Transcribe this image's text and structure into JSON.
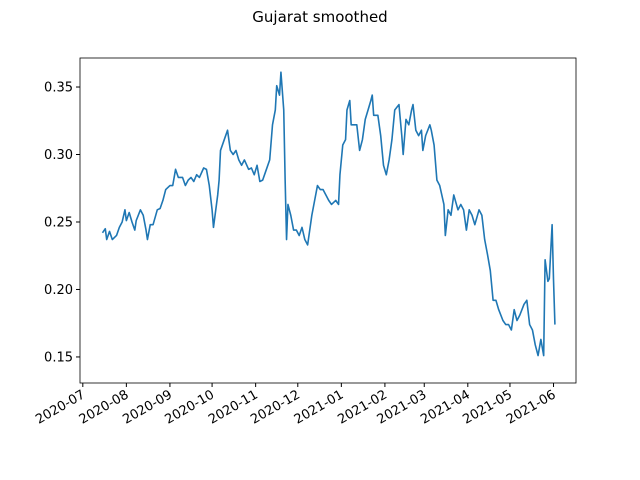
{
  "chart_data": {
    "type": "line",
    "title": "Gujarat smoothed",
    "xlim": [
      18442,
      18795
    ],
    "ylim": [
      0.1307,
      0.3715
    ],
    "xticks": [
      {
        "value": 18444,
        "label": "2020-07"
      },
      {
        "value": 18475,
        "label": "2020-08"
      },
      {
        "value": 18506,
        "label": "2020-09"
      },
      {
        "value": 18536,
        "label": "2020-10"
      },
      {
        "value": 18567,
        "label": "2020-11"
      },
      {
        "value": 18597,
        "label": "2020-12"
      },
      {
        "value": 18628,
        "label": "2021-01"
      },
      {
        "value": 18659,
        "label": "2021-02"
      },
      {
        "value": 18687,
        "label": "2021-03"
      },
      {
        "value": 18718,
        "label": "2021-04"
      },
      {
        "value": 18748,
        "label": "2021-05"
      },
      {
        "value": 18779,
        "label": "2021-06"
      }
    ],
    "yticks": [
      0.15,
      {
        "value": 0.2,
        "label": "0.20"
      },
      0.25,
      {
        "value": 0.3,
        "label": "0.30"
      },
      0.35
    ],
    "grid": false,
    "x": [
      18458,
      18460,
      18461,
      18463,
      18465,
      18468,
      18470,
      18472,
      18474,
      18475,
      18477,
      18479,
      18481,
      18482,
      18485,
      18487,
      18489,
      18490,
      18492,
      18494,
      18497,
      18499,
      18501,
      18503,
      18506,
      18508,
      18510,
      18512,
      18515,
      18517,
      18519,
      18521,
      18523,
      18525,
      18527,
      18530,
      18532,
      18534,
      18536,
      18537,
      18540,
      18541,
      18542,
      18545,
      18547,
      18549,
      18551,
      18553,
      18555,
      18557,
      18559,
      18562,
      18564,
      18566,
      18568,
      18570,
      18572,
      18574,
      18577,
      18579,
      18581,
      18582,
      18584,
      18585,
      18587,
      18588,
      18589,
      18590,
      18592,
      18594,
      18596,
      18598,
      18600,
      18602,
      18604,
      18607,
      18609,
      18611,
      18613,
      18615,
      18617,
      18619,
      18621,
      18624,
      18626,
      18627,
      18629,
      18631,
      18632,
      18634,
      18635,
      18636,
      18639,
      18641,
      18643,
      18645,
      18647,
      18649,
      18650,
      18651,
      18654,
      18656,
      18658,
      18660,
      18662,
      18664,
      18666,
      18669,
      18671,
      18672,
      18674,
      18676,
      18678,
      18679,
      18681,
      18683,
      18685,
      18686,
      18688,
      18691,
      18692,
      18694,
      18696,
      18698,
      18701,
      18702,
      18704,
      18706,
      18708,
      18711,
      18713,
      18715,
      18717,
      18719,
      18721,
      18723,
      18726,
      18728,
      18730,
      18732,
      18734,
      18736,
      18738,
      18740,
      18743,
      18745,
      18747,
      18749,
      18751,
      18753,
      18755,
      18758,
      18760,
      18762,
      18764,
      18766,
      18768,
      18770,
      18772,
      18773,
      18775,
      18776,
      18778,
      18779,
      18780
    ],
    "series": [
      {
        "name": "Gujarat",
        "color": "#1f77b4",
        "values": [
          0.242,
          0.245,
          0.237,
          0.243,
          0.237,
          0.24,
          0.246,
          0.25,
          0.259,
          0.251,
          0.257,
          0.25,
          0.244,
          0.251,
          0.259,
          0.255,
          0.244,
          0.237,
          0.248,
          0.248,
          0.259,
          0.26,
          0.266,
          0.274,
          0.277,
          0.277,
          0.289,
          0.283,
          0.283,
          0.277,
          0.281,
          0.283,
          0.28,
          0.285,
          0.283,
          0.29,
          0.289,
          0.277,
          0.259,
          0.246,
          0.27,
          0.281,
          0.303,
          0.312,
          0.318,
          0.303,
          0.3,
          0.303,
          0.296,
          0.292,
          0.296,
          0.289,
          0.29,
          0.285,
          0.292,
          0.28,
          0.281,
          0.287,
          0.296,
          0.322,
          0.333,
          0.351,
          0.344,
          0.361,
          0.333,
          0.281,
          0.237,
          0.263,
          0.255,
          0.244,
          0.244,
          0.24,
          0.246,
          0.237,
          0.233,
          0.255,
          0.266,
          0.277,
          0.274,
          0.274,
          0.27,
          0.266,
          0.263,
          0.266,
          0.263,
          0.285,
          0.307,
          0.311,
          0.333,
          0.34,
          0.322,
          0.322,
          0.322,
          0.303,
          0.311,
          0.326,
          0.333,
          0.34,
          0.344,
          0.329,
          0.329,
          0.314,
          0.292,
          0.285,
          0.296,
          0.311,
          0.333,
          0.337,
          0.314,
          0.3,
          0.326,
          0.322,
          0.333,
          0.337,
          0.318,
          0.314,
          0.318,
          0.303,
          0.314,
          0.322,
          0.318,
          0.307,
          0.281,
          0.277,
          0.263,
          0.24,
          0.259,
          0.255,
          0.27,
          0.259,
          0.263,
          0.259,
          0.244,
          0.259,
          0.255,
          0.248,
          0.259,
          0.255,
          0.237,
          0.226,
          0.214,
          0.192,
          0.192,
          0.185,
          0.177,
          0.174,
          0.174,
          0.17,
          0.185,
          0.177,
          0.181,
          0.189,
          0.192,
          0.174,
          0.17,
          0.159,
          0.151,
          0.163,
          0.151,
          0.222,
          0.206,
          0.208,
          0.248,
          0.207,
          0.174
        ]
      }
    ]
  }
}
